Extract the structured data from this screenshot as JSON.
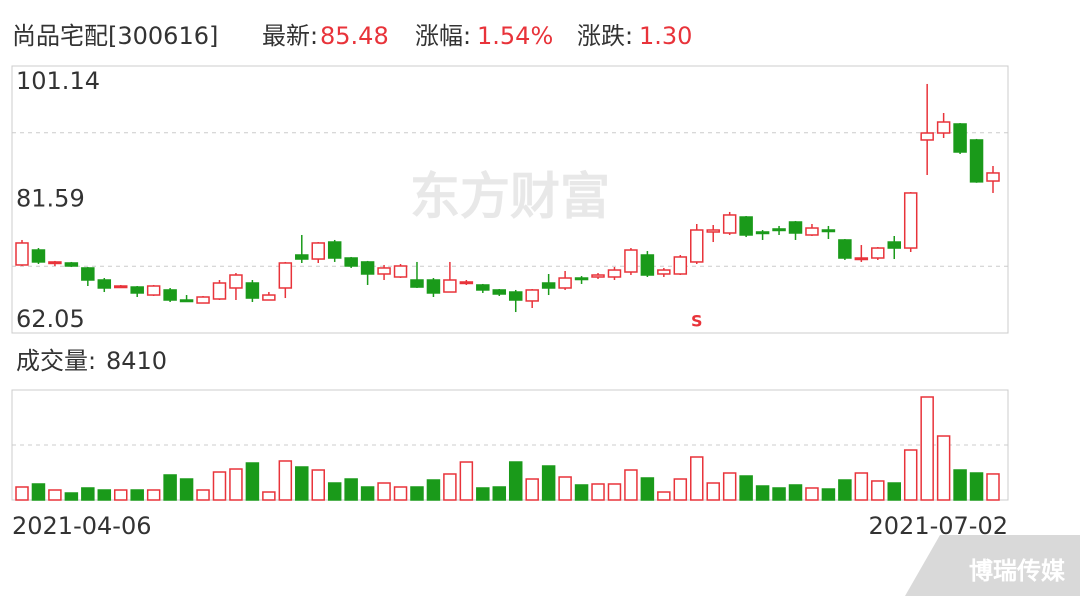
{
  "header": {
    "name": "尚品宅配[300616]",
    "latest_label": "最新:",
    "latest": "85.48",
    "change_pct_label": "涨幅:",
    "change_pct": "1.54%",
    "change_label": "涨跌:",
    "change": "1.30"
  },
  "chart_data": {
    "type": "candlestick",
    "categories": [
      "2021-04-06",
      null,
      null,
      null,
      null,
      null,
      null,
      null,
      null,
      null,
      null,
      null,
      null,
      null,
      null,
      null,
      null,
      null,
      null,
      null,
      null,
      null,
      null,
      null,
      null,
      null,
      null,
      null,
      null,
      null,
      null,
      null,
      null,
      null,
      null,
      null,
      null,
      null,
      null,
      null,
      null,
      null,
      null,
      null,
      null,
      null,
      null,
      null,
      null,
      null,
      null,
      null,
      null,
      null,
      null,
      null,
      null,
      null,
      null,
      "2021-07-02"
    ],
    "open": [
      72.01,
      74.2,
      72.3,
      72.3,
      71.57,
      69.81,
      68.78,
      68.78,
      67.61,
      68.35,
      66.88,
      66.44,
      67.03,
      68.64,
      69.37,
      66.88,
      68.64,
      73.47,
      72.88,
      75.37,
      73.03,
      72.45,
      70.69,
      70.25,
      69.81,
      69.81,
      68.05,
      69.37,
      69.08,
      68.35,
      68.05,
      66.74,
      69.37,
      68.64,
      70.1,
      70.25,
      70.25,
      70.98,
      73.47,
      70.69,
      70.69,
      72.45,
      76.84,
      76.69,
      79.03,
      76.84,
      77.28,
      78.3,
      76.4,
      77.13,
      75.67,
      72.88,
      73.03,
      75.37,
      74.49,
      90.31,
      91.33,
      92.65,
      90.31,
      84.3
    ],
    "high": [
      75.67,
      74.49,
      72.6,
      72.45,
      71.71,
      70.1,
      69.08,
      68.93,
      69.08,
      68.64,
      67.61,
      67.47,
      69.81,
      70.83,
      69.81,
      68.05,
      72.45,
      76.4,
      75.37,
      75.67,
      73.18,
      72.6,
      72.01,
      72.15,
      72.45,
      70.1,
      72.45,
      69.81,
      69.23,
      68.49,
      68.35,
      68.49,
      70.69,
      71.13,
      70.39,
      70.83,
      71.71,
      74.49,
      74.05,
      71.57,
      73.47,
      78.01,
      77.86,
      79.77,
      79.18,
      77.13,
      77.72,
      78.45,
      78.01,
      77.72,
      75.81,
      74.93,
      74.64,
      76.25,
      82.69,
      98.51,
      94.26,
      92.79,
      90.46,
      86.5
    ],
    "low": [
      71.86,
      72.15,
      71.86,
      71.71,
      68.93,
      68.05,
      68.64,
      67.32,
      67.47,
      66.59,
      66.59,
      66.44,
      66.88,
      66.88,
      66.59,
      66.88,
      67.17,
      72.3,
      72.3,
      72.45,
      71.57,
      69.08,
      69.81,
      70.1,
      68.64,
      67.32,
      68.05,
      69.08,
      67.91,
      67.47,
      65.12,
      65.71,
      67.61,
      68.35,
      69.23,
      69.96,
      69.81,
      70.54,
      70.25,
      70.25,
      70.54,
      72.15,
      75.37,
      76.4,
      76.1,
      75.67,
      76.4,
      75.67,
      76.25,
      75.81,
      72.74,
      72.45,
      72.74,
      72.88,
      73.91,
      85.18,
      90.6,
      88.26,
      84.04,
      82.55
    ],
    "close": [
      75.23,
      72.45,
      72.45,
      71.86,
      69.81,
      68.64,
      68.93,
      67.91,
      68.93,
      66.88,
      66.74,
      67.32,
      69.37,
      70.54,
      67.17,
      67.61,
      72.3,
      72.88,
      75.23,
      73.03,
      71.86,
      70.69,
      71.57,
      71.86,
      68.78,
      67.91,
      69.81,
      69.52,
      68.35,
      67.76,
      66.88,
      68.35,
      68.64,
      70.1,
      69.96,
      70.54,
      71.27,
      74.2,
      70.54,
      71.27,
      73.18,
      77.13,
      77.13,
      79.33,
      76.4,
      76.69,
      77.13,
      76.69,
      77.42,
      76.99,
      73.03,
      73.03,
      74.49,
      74.49,
      82.55,
      91.33,
      92.94,
      88.55,
      84.18,
      85.48
    ],
    "up_color": "#e8333a",
    "down_color": "#1a9a1a",
    "ylim": [
      62.05,
      101.14
    ],
    "yticks": [
      62.05,
      81.59,
      101.14
    ],
    "grid_lines": [
      71.82,
      91.37
    ],
    "watermark": "东方财富",
    "marker": {
      "label": "S",
      "index": 41
    },
    "volume_label": "成交量:",
    "volume_latest": "8410",
    "volume": [
      4200,
      5170,
      3230,
      2260,
      3880,
      3230,
      3230,
      3230,
      3230,
      8080,
      6780,
      3230,
      9040,
      10010,
      11950,
      2580,
      12600,
      10660,
      9690,
      5490,
      6780,
      4200,
      5490,
      4200,
      4200,
      6460,
      8400,
      12270,
      3880,
      4200,
      12270,
      6780,
      10980,
      7430,
      4850,
      5170,
      5170,
      9690,
      7110,
      2580,
      6780,
      13890,
      5490,
      8720,
      7750,
      4520,
      3880,
      4850,
      3880,
      3550,
      6460,
      8720,
      6140,
      5490,
      16150,
      33270,
      20670,
      9690,
      8720,
      8410
    ],
    "volume_ylim": [
      0,
      35530
    ],
    "volume_grid_lines": [
      17765
    ]
  },
  "logo": "博瑞传媒"
}
